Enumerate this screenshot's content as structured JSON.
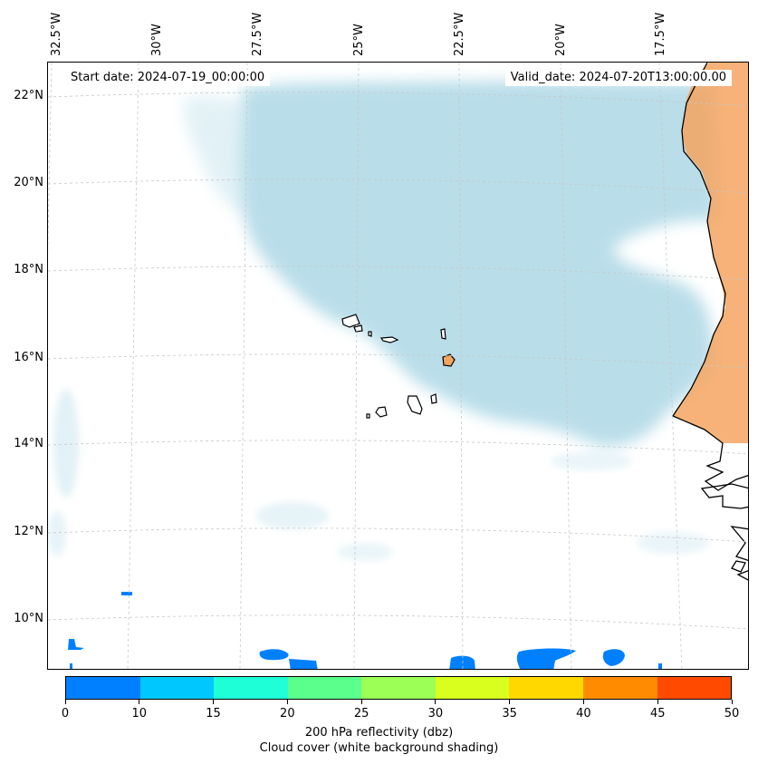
{
  "map": {
    "start_date": "Start date: 2024-07-19_00:00:00",
    "valid_date": "Valid_date: 2024-07-20T13:00:00.00",
    "lon_labels": [
      "32.5°W",
      "30°W",
      "27.5°W",
      "25°W",
      "22.5°W",
      "20°W",
      "17.5°W"
    ],
    "lat_labels": [
      "22°N",
      "20°N",
      "18°N",
      "16°N",
      "14°N",
      "12°N",
      "10°N"
    ],
    "colors": {
      "cloud": "#add8e6",
      "land_shading": "#f4a460",
      "coastline": "#000000",
      "gridline": "#c8c8c8"
    }
  },
  "colorbar": {
    "ticks": [
      "0",
      "10",
      "15",
      "20",
      "25",
      "30",
      "35",
      "40",
      "45",
      "50"
    ],
    "colors": [
      "#0080ff",
      "#00c8ff",
      "#1effd8",
      "#5bff8c",
      "#9bff55",
      "#d8ff1e",
      "#ffd800",
      "#ff8c00",
      "#ff4a00"
    ],
    "label": "200 hPa reflectivity (dbz)",
    "sublabel": "Cloud cover (white background shading)"
  }
}
